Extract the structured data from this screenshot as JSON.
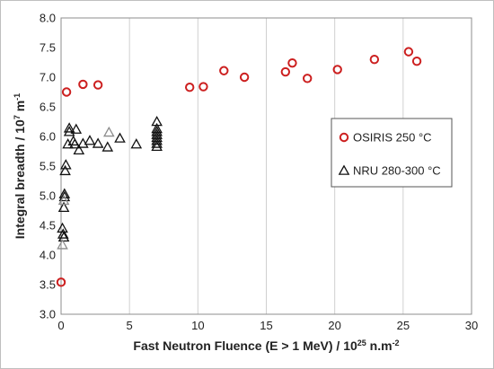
{
  "chart_data": {
    "type": "scatter",
    "xlim": [
      0,
      30
    ],
    "ylim": [
      3.0,
      8.0
    ],
    "x_ticks": [
      "0",
      "5",
      "10",
      "15",
      "20",
      "25",
      "30"
    ],
    "y_ticks": [
      "3.0",
      "3.5",
      "4.0",
      "4.5",
      "5.0",
      "5.5",
      "6.0",
      "6.5",
      "7.0",
      "7.5",
      "8.0"
    ],
    "xlabel": {
      "main": "Fast Neutron Fluence (E > 1 MeV) / 10",
      "sup": "25",
      "tail": " n.m",
      "sup2": "-2"
    },
    "ylabel": {
      "main": "Integral breadth / 10",
      "sup": "7",
      "tail": " m",
      "sup2": "-1"
    },
    "grid": "vertical gridlines",
    "legend_placement": "right",
    "series": [
      {
        "name": "OSIRIS 250 °C",
        "marker": "circle",
        "color": "#cc1f1f",
        "points": [
          [
            0.0,
            3.54
          ],
          [
            0.4,
            6.75
          ],
          [
            1.6,
            6.88
          ],
          [
            2.7,
            6.87
          ],
          [
            9.4,
            6.83
          ],
          [
            10.4,
            6.84
          ],
          [
            11.9,
            7.11
          ],
          [
            13.4,
            7.0
          ],
          [
            16.4,
            7.09
          ],
          [
            16.9,
            7.24
          ],
          [
            18.0,
            6.98
          ],
          [
            20.2,
            7.13
          ],
          [
            22.9,
            7.3
          ],
          [
            25.4,
            7.43
          ],
          [
            26.0,
            7.27
          ]
        ]
      },
      {
        "name": "NRU 280-300 °C",
        "marker": "triangle",
        "color": "#111111",
        "points": [
          [
            0.1,
            4.45
          ],
          [
            0.15,
            4.35
          ],
          [
            0.2,
            4.3
          ],
          [
            0.2,
            4.8
          ],
          [
            0.25,
            4.98
          ],
          [
            0.25,
            5.03
          ],
          [
            0.3,
            5.42
          ],
          [
            0.35,
            5.52
          ],
          [
            0.5,
            5.87
          ],
          [
            0.6,
            6.08
          ],
          [
            0.6,
            6.14
          ],
          [
            0.9,
            5.92
          ],
          [
            1.0,
            5.87
          ],
          [
            1.1,
            6.12
          ],
          [
            1.3,
            5.77
          ],
          [
            1.6,
            5.88
          ],
          [
            2.1,
            5.93
          ],
          [
            2.7,
            5.88
          ],
          [
            3.4,
            5.82
          ],
          [
            4.3,
            5.97
          ],
          [
            5.5,
            5.87
          ],
          [
            7.0,
            5.83
          ],
          [
            7.0,
            5.88
          ],
          [
            7.0,
            5.93
          ],
          [
            7.0,
            5.98
          ],
          [
            7.0,
            6.03
          ],
          [
            7.0,
            6.08
          ],
          [
            7.0,
            6.13
          ],
          [
            7.0,
            6.25
          ]
        ]
      },
      {
        "name": "",
        "marker": "triangle",
        "color": "#8c8c8c",
        "points": [
          [
            0.1,
            4.17
          ],
          [
            0.2,
            4.92
          ],
          [
            3.5,
            6.07
          ]
        ]
      }
    ]
  }
}
